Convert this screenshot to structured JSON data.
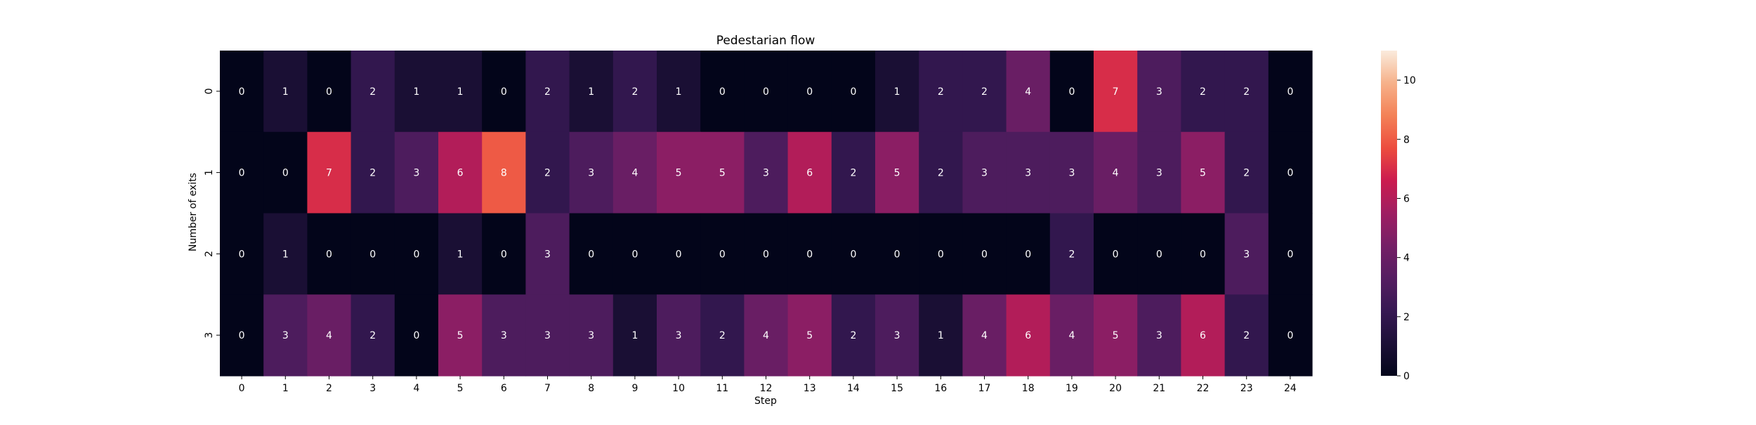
{
  "chart_data": {
    "type": "heatmap",
    "title": "Pedestarian flow",
    "xlabel": "Step",
    "ylabel": "Number of exits",
    "x_categories": [
      "0",
      "1",
      "2",
      "3",
      "4",
      "5",
      "6",
      "7",
      "8",
      "9",
      "10",
      "11",
      "12",
      "13",
      "14",
      "15",
      "16",
      "17",
      "18",
      "19",
      "20",
      "21",
      "22",
      "23",
      "24"
    ],
    "y_categories": [
      "0",
      "1",
      "2",
      "3"
    ],
    "values": [
      [
        0,
        1,
        0,
        2,
        1,
        1,
        0,
        2,
        1,
        2,
        1,
        0,
        0,
        0,
        0,
        1,
        2,
        2,
        4,
        0,
        7,
        3,
        2,
        2,
        0
      ],
      [
        0,
        0,
        7,
        2,
        3,
        6,
        8,
        2,
        3,
        4,
        5,
        5,
        3,
        6,
        2,
        5,
        2,
        3,
        3,
        3,
        4,
        3,
        5,
        2,
        0
      ],
      [
        0,
        1,
        0,
        0,
        0,
        1,
        0,
        3,
        0,
        0,
        0,
        0,
        0,
        0,
        0,
        0,
        0,
        0,
        0,
        2,
        0,
        0,
        0,
        3,
        0
      ],
      [
        0,
        3,
        4,
        2,
        0,
        5,
        3,
        3,
        3,
        1,
        3,
        2,
        4,
        5,
        2,
        3,
        1,
        4,
        6,
        4,
        5,
        3,
        6,
        2,
        0
      ]
    ],
    "colorbar": {
      "min": 0,
      "max": 11,
      "ticks": [
        "0",
        "2",
        "4",
        "6",
        "8",
        "10"
      ],
      "colormap": "rocket"
    },
    "annotation_color": "#ffffff"
  }
}
